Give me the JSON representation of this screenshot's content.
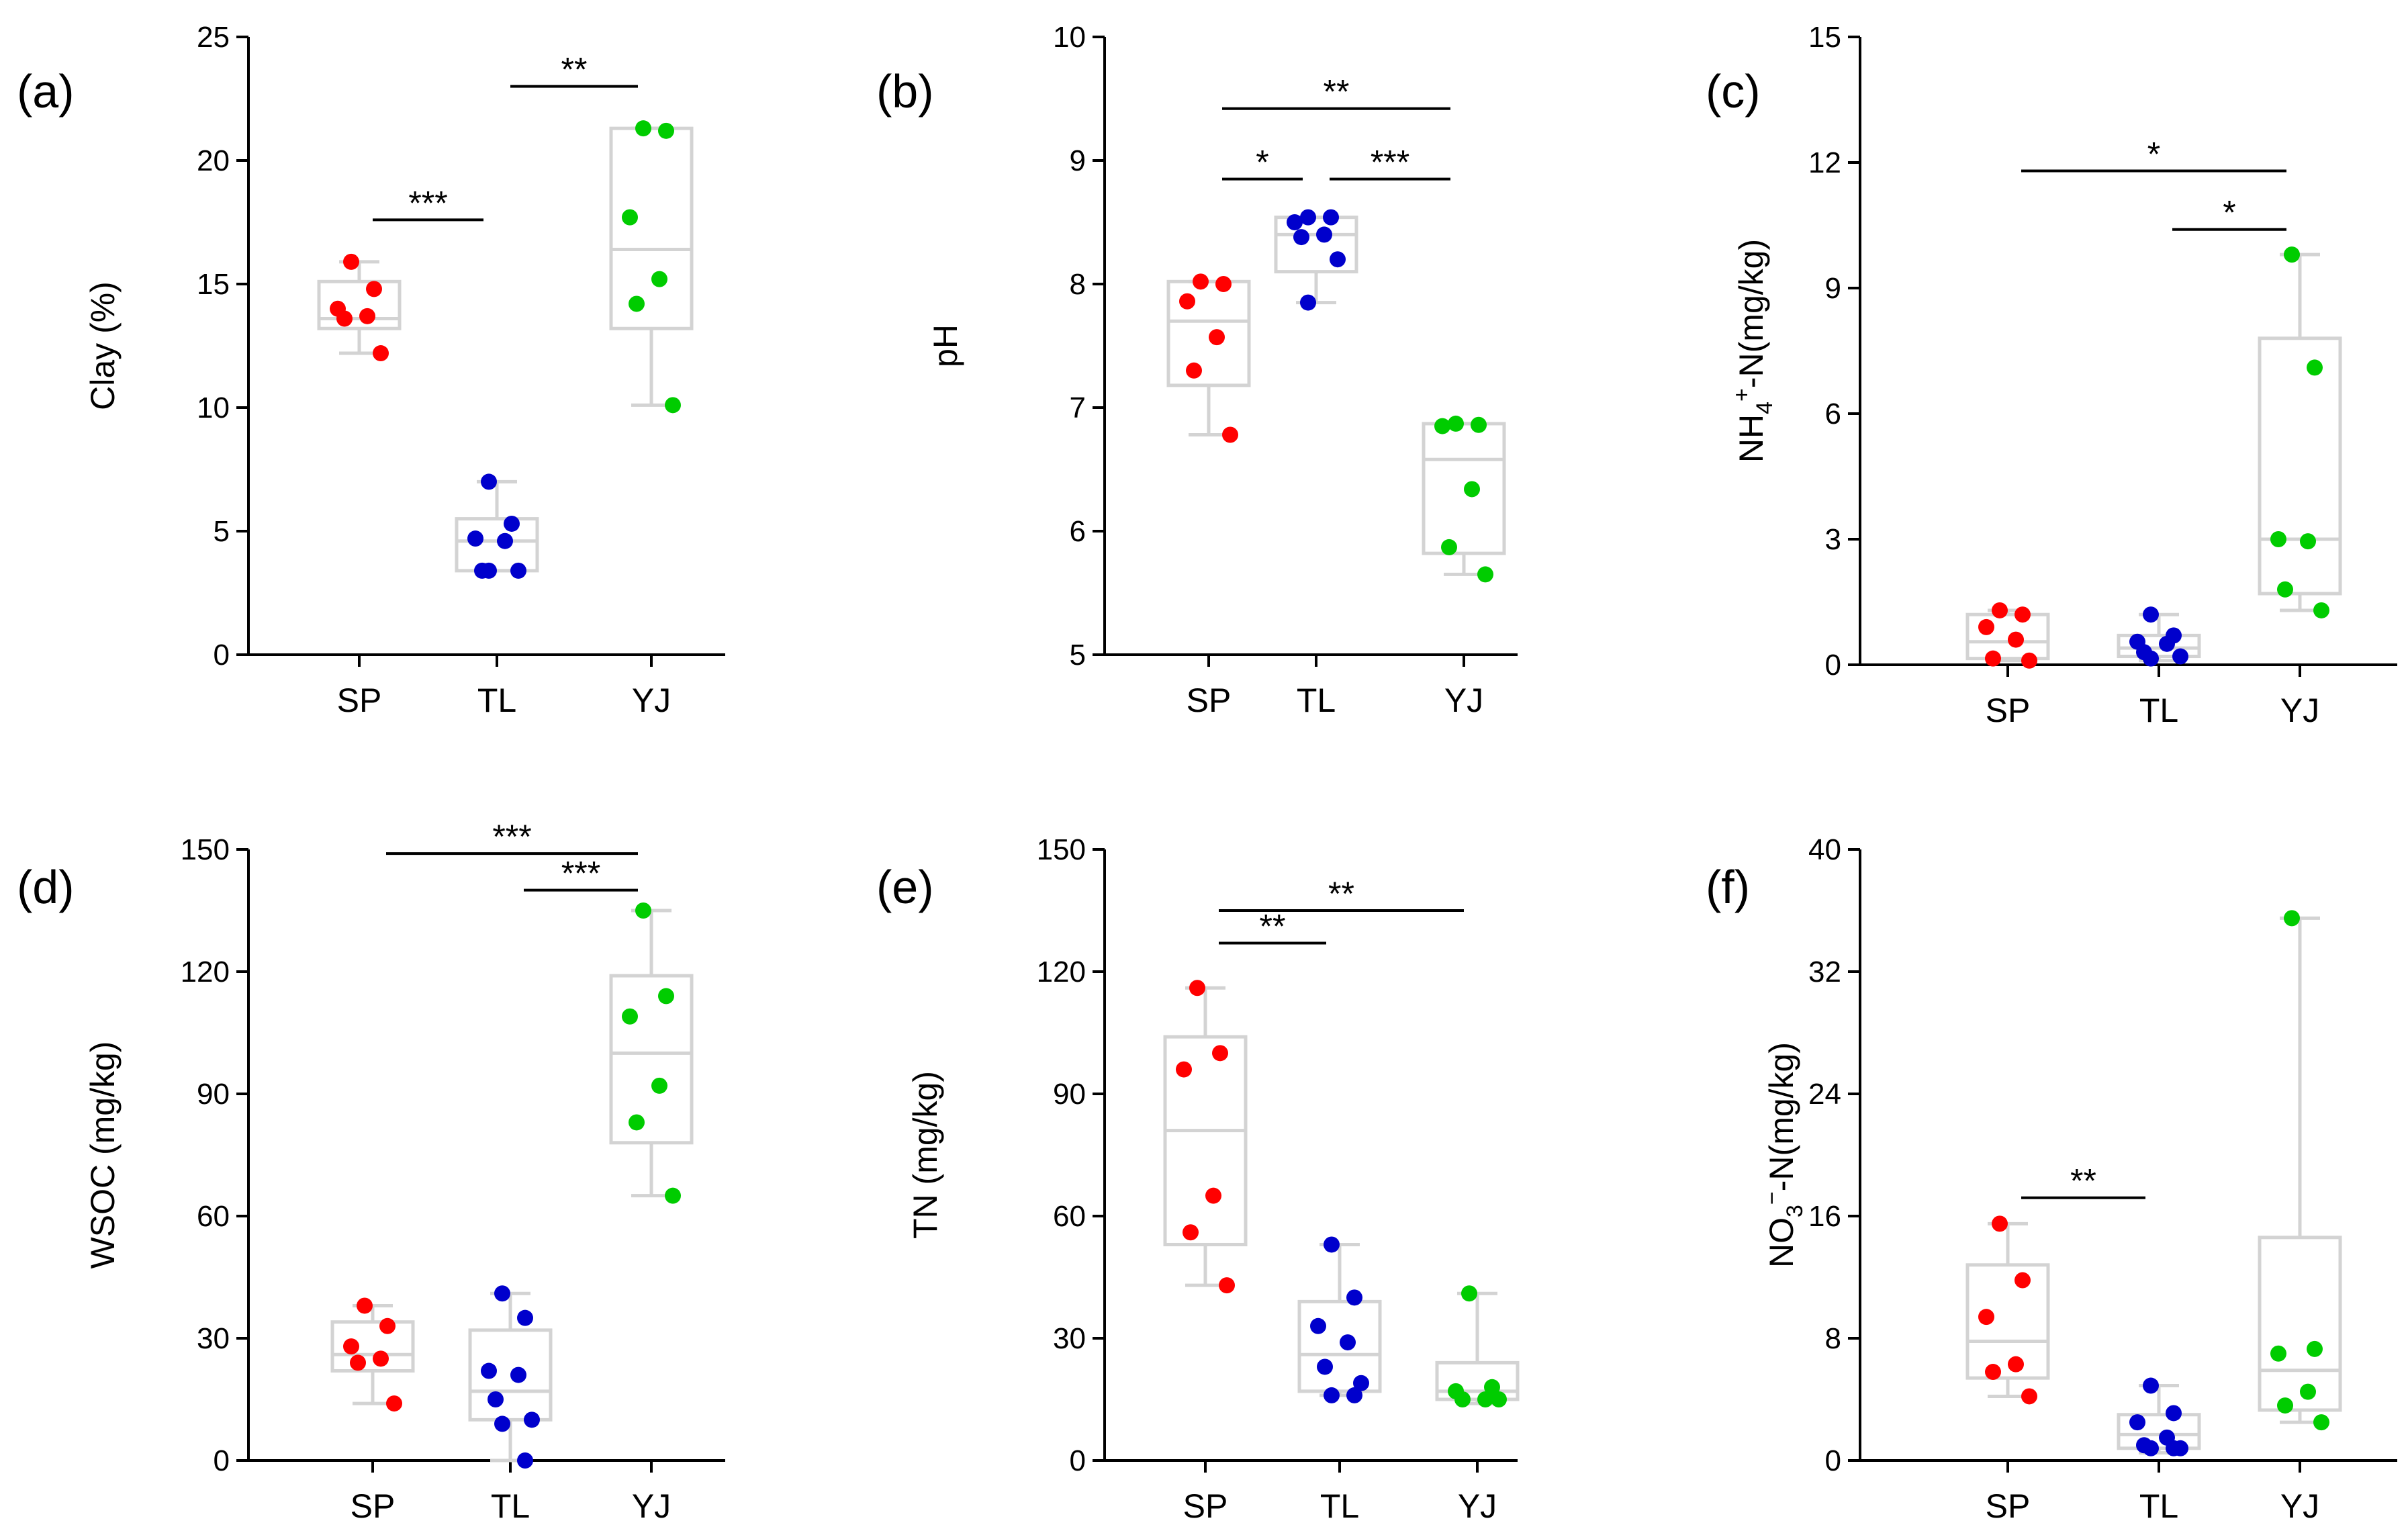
{
  "chart_data": [
    {
      "type": "box",
      "panel_label": "(a)",
      "ylabel": "Clay (%)",
      "ylim": [
        0,
        25
      ],
      "yticks": [
        "0",
        "5",
        "10",
        "15",
        "20",
        "25"
      ],
      "categories": [
        "SP",
        "TL",
        "YJ"
      ],
      "series": [
        {
          "name": "SP",
          "color": "#ff0000",
          "whisker_low": 12.2,
          "q1": 13.2,
          "median": 13.6,
          "q3": 15.1,
          "whisker_high": 15.9,
          "points": [
            15.9,
            14.8,
            14.0,
            13.7,
            13.6,
            12.2
          ]
        },
        {
          "name": "TL",
          "color": "#0000cc",
          "whisker_low": 3.4,
          "q1": 3.4,
          "median": 4.6,
          "q3": 5.5,
          "whisker_high": 7.0,
          "points": [
            7.0,
            5.3,
            4.7,
            4.6,
            3.4,
            3.4,
            3.4
          ]
        },
        {
          "name": "YJ",
          "color": "#00cc00",
          "whisker_low": 10.1,
          "q1": 13.2,
          "median": 16.4,
          "q3": 21.3,
          "whisker_high": 21.3,
          "points": [
            21.3,
            21.2,
            17.7,
            15.2,
            14.2,
            10.1
          ]
        }
      ],
      "significance": [
        {
          "from": "SP",
          "to": "TL",
          "label": "***",
          "y": 17.6
        },
        {
          "from": "TL",
          "to": "YJ",
          "label": "**",
          "y": 23.0
        }
      ]
    },
    {
      "type": "box",
      "panel_label": "(b)",
      "ylabel": "pH",
      "ylim": [
        5,
        10
      ],
      "yticks": [
        "5",
        "6",
        "7",
        "8",
        "9",
        "10"
      ],
      "categories": [
        "SP",
        "TL",
        "YJ"
      ],
      "series": [
        {
          "name": "SP",
          "color": "#ff0000",
          "whisker_low": 6.78,
          "q1": 7.18,
          "median": 7.7,
          "q3": 8.02,
          "whisker_high": 8.02,
          "points": [
            8.02,
            8.0,
            7.86,
            7.57,
            7.3,
            6.78
          ]
        },
        {
          "name": "TL",
          "color": "#0000cc",
          "whisker_low": 7.85,
          "q1": 8.1,
          "median": 8.4,
          "q3": 8.54,
          "whisker_high": 8.54,
          "points": [
            8.54,
            8.54,
            8.5,
            8.4,
            8.38,
            8.2,
            7.85
          ]
        },
        {
          "name": "YJ",
          "color": "#00cc00",
          "whisker_low": 5.65,
          "q1": 5.82,
          "median": 6.58,
          "q3": 6.87,
          "whisker_high": 6.87,
          "points": [
            6.87,
            6.86,
            6.85,
            6.34,
            5.87,
            5.65
          ]
        }
      ],
      "significance": [
        {
          "from": "SP",
          "to": "YJ",
          "label": "**",
          "y": 9.42
        },
        {
          "from": "SP",
          "to": "TL",
          "label": "*",
          "y": 8.85
        },
        {
          "from": "TL",
          "to": "YJ",
          "label": "***",
          "y": 8.85
        }
      ]
    },
    {
      "type": "box",
      "panel_label": "(c)",
      "ylabel": "NH4+-N(mg/kg)",
      "ylabel_parts": {
        "base": "NH",
        "sub": "4",
        "sup": "+",
        "rest": "-N(mg/kg)"
      },
      "ylim": [
        0,
        15
      ],
      "yticks": [
        "0",
        "3",
        "6",
        "9",
        "12",
        "15"
      ],
      "categories": [
        "SP",
        "TL",
        "YJ"
      ],
      "series": [
        {
          "name": "SP",
          "color": "#ff0000",
          "whisker_low": 0.1,
          "q1": 0.15,
          "median": 0.55,
          "q3": 1.2,
          "whisker_high": 1.3,
          "points": [
            1.3,
            1.2,
            0.9,
            0.6,
            0.15,
            0.1
          ]
        },
        {
          "name": "TL",
          "color": "#0000cc",
          "whisker_low": 0.1,
          "q1": 0.2,
          "median": 0.4,
          "q3": 0.7,
          "whisker_high": 1.2,
          "points": [
            1.2,
            0.7,
            0.55,
            0.5,
            0.3,
            0.2,
            0.15
          ]
        },
        {
          "name": "YJ",
          "color": "#00cc00",
          "whisker_low": 1.3,
          "q1": 1.7,
          "median": 3.0,
          "q3": 7.8,
          "whisker_high": 9.8,
          "points": [
            9.8,
            7.1,
            3.0,
            2.95,
            1.8,
            1.3
          ]
        }
      ],
      "significance": [
        {
          "from": "SP",
          "to": "YJ",
          "label": "*",
          "y": 11.8
        },
        {
          "from": "TL",
          "to": "YJ",
          "label": "*",
          "y": 10.4
        }
      ]
    },
    {
      "type": "box",
      "panel_label": "(d)",
      "ylabel": "WSOC (mg/kg)",
      "ylim": [
        0,
        150
      ],
      "yticks": [
        "0",
        "30",
        "60",
        "90",
        "120",
        "150"
      ],
      "categories": [
        "SP",
        "TL",
        "YJ"
      ],
      "series": [
        {
          "name": "SP",
          "color": "#ff0000",
          "whisker_low": 14,
          "q1": 22,
          "median": 26,
          "q3": 34,
          "whisker_high": 38,
          "points": [
            38,
            33,
            28,
            25,
            24,
            14
          ]
        },
        {
          "name": "TL",
          "color": "#0000cc",
          "whisker_low": 0,
          "q1": 10,
          "median": 17,
          "q3": 32,
          "whisker_high": 41,
          "points": [
            41,
            35,
            22,
            21,
            15,
            10,
            9,
            0
          ]
        },
        {
          "name": "YJ",
          "color": "#00cc00",
          "whisker_low": 65,
          "q1": 78,
          "median": 100,
          "q3": 119,
          "whisker_high": 135,
          "points": [
            135,
            114,
            109,
            92,
            83,
            65
          ]
        }
      ],
      "significance": [
        {
          "from": "SP",
          "to": "YJ",
          "label": "***",
          "y": 149
        },
        {
          "from": "TL",
          "to": "YJ",
          "label": "***",
          "y": 140
        }
      ]
    },
    {
      "type": "box",
      "panel_label": "(e)",
      "ylabel": "TN (mg/kg)",
      "ylim": [
        0,
        150
      ],
      "yticks": [
        "0",
        "30",
        "60",
        "90",
        "120",
        "150"
      ],
      "categories": [
        "SP",
        "TL",
        "YJ"
      ],
      "series": [
        {
          "name": "SP",
          "color": "#ff0000",
          "whisker_low": 43,
          "q1": 53,
          "median": 81,
          "q3": 104,
          "whisker_high": 116,
          "points": [
            116,
            100,
            96,
            65,
            56,
            43
          ]
        },
        {
          "name": "TL",
          "color": "#0000cc",
          "whisker_low": 16,
          "q1": 17,
          "median": 26,
          "q3": 39,
          "whisker_high": 53,
          "points": [
            53,
            40,
            33,
            29,
            23,
            19,
            16,
            16
          ]
        },
        {
          "name": "YJ",
          "color": "#00cc00",
          "whisker_low": 14,
          "q1": 15,
          "median": 17,
          "q3": 24,
          "whisker_high": 41,
          "points": [
            41,
            18,
            17,
            15,
            15,
            15
          ]
        }
      ],
      "significance": [
        {
          "from": "SP",
          "to": "YJ",
          "label": "**",
          "y": 135
        },
        {
          "from": "SP",
          "to": "TL",
          "label": "**",
          "y": 127
        }
      ]
    },
    {
      "type": "box",
      "panel_label": "(f)",
      "ylabel": "NO3−-N(mg/kg)",
      "ylabel_parts": {
        "base": "NO",
        "sub": "3",
        "sup": "−",
        "rest": "-N(mg/kg)"
      },
      "ylim": [
        0,
        40
      ],
      "yticks": [
        "0",
        "8",
        "16",
        "24",
        "32",
        "40"
      ],
      "categories": [
        "SP",
        "TL",
        "YJ"
      ],
      "series": [
        {
          "name": "SP",
          "color": "#ff0000",
          "whisker_low": 4.2,
          "q1": 5.4,
          "median": 7.8,
          "q3": 12.8,
          "whisker_high": 15.5,
          "points": [
            15.5,
            11.8,
            9.4,
            6.3,
            5.8,
            4.2
          ]
        },
        {
          "name": "TL",
          "color": "#0000cc",
          "whisker_low": 0.5,
          "q1": 0.8,
          "median": 1.7,
          "q3": 3.0,
          "whisker_high": 4.9,
          "points": [
            4.9,
            3.1,
            2.5,
            1.5,
            1.0,
            0.8,
            0.8,
            0.8
          ]
        },
        {
          "name": "YJ",
          "color": "#00cc00",
          "whisker_low": 2.5,
          "q1": 3.3,
          "median": 5.9,
          "q3": 14.6,
          "whisker_high": 35.5,
          "points": [
            35.5,
            7.3,
            7.0,
            4.5,
            3.6,
            2.5
          ]
        }
      ],
      "significance": [
        {
          "from": "SP",
          "to": "TL",
          "label": "**",
          "y": 17.2
        }
      ]
    }
  ]
}
